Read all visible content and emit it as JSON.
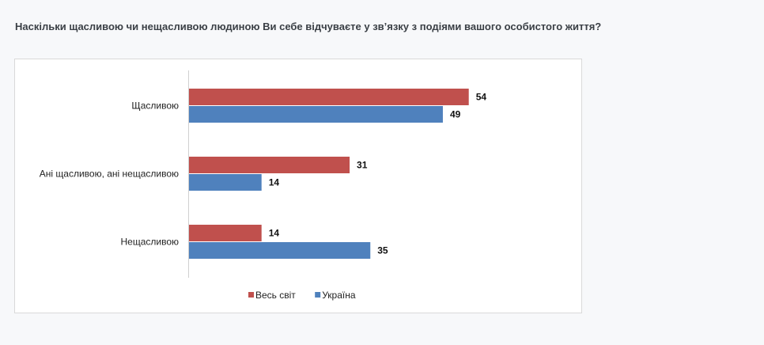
{
  "question": "Наскільки щасливою чи нещасливою людиною Ви себе відчуваєте у зв’язку з подіями вашого особистого життя?",
  "colors": {
    "world": "#c0504d",
    "ukraine": "#4f81bd"
  },
  "chart_data": {
    "type": "bar",
    "orientation": "horizontal",
    "categories": [
      "Щасливою",
      "Ані щасливою, ані нещасливою",
      "Нещасливою"
    ],
    "series": [
      {
        "name": "Весь світ",
        "values": [
          54,
          31,
          14
        ]
      },
      {
        "name": "Україна",
        "values": [
          49,
          14,
          35
        ]
      }
    ],
    "xlim": [
      0,
      60
    ],
    "grid": false,
    "data_labels": true,
    "legend_position": "bottom",
    "title": "",
    "xlabel": "",
    "ylabel": ""
  }
}
